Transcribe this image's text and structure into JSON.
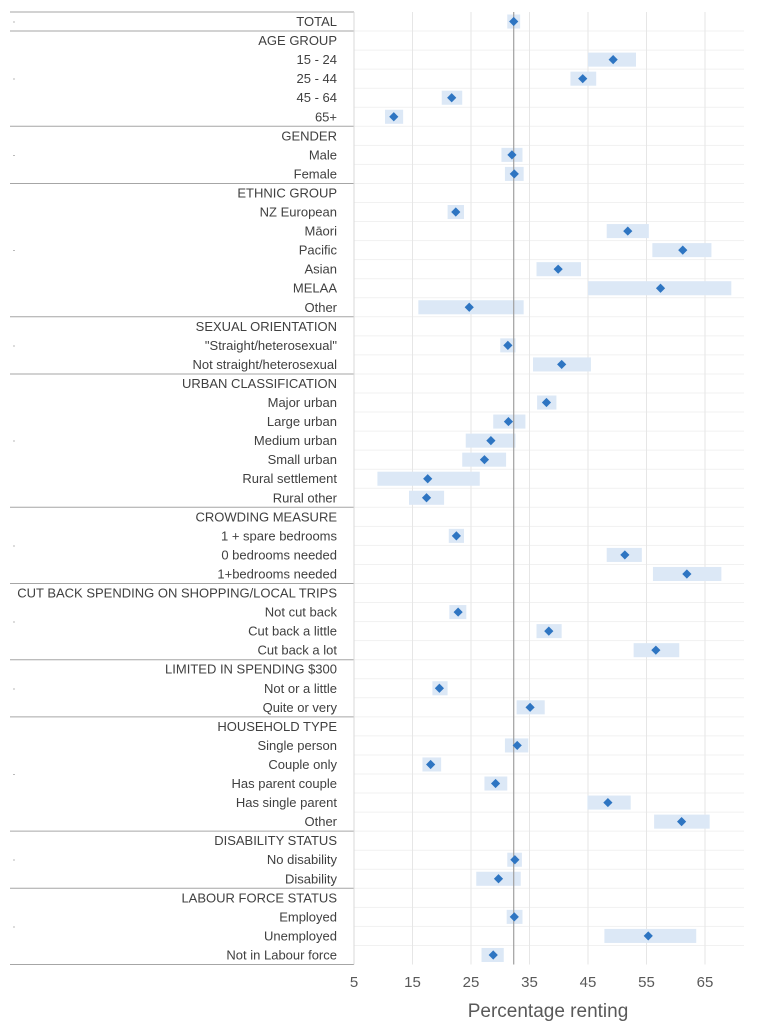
{
  "chart_data": {
    "type": "scatter",
    "title": "",
    "xlabel": "Percentage renting",
    "xlim": [
      5,
      71
    ],
    "xticks": [
      5,
      15,
      25,
      35,
      45,
      55,
      65
    ],
    "reference_line": 32.3,
    "point_color": "#2e75c2",
    "ci_color": "#dce8f6",
    "grid": "vertical",
    "rows": [
      {
        "label": "TOTAL",
        "header": true,
        "value": 32.3,
        "low": 31.2,
        "high": 33.4
      },
      {
        "label": "AGE GROUP",
        "header": true
      },
      {
        "label": "15 - 24",
        "value": 49.3,
        "low": 45.0,
        "high": 53.2
      },
      {
        "label": "25 - 44",
        "value": 44.1,
        "low": 42.0,
        "high": 46.4
      },
      {
        "label": "45 - 64",
        "value": 21.7,
        "low": 20.0,
        "high": 23.5
      },
      {
        "label": "65+",
        "value": 11.8,
        "low": 10.3,
        "high": 13.4
      },
      {
        "label": "GENDER",
        "header": true
      },
      {
        "label": "Male",
        "value": 32.0,
        "low": 30.2,
        "high": 33.8
      },
      {
        "label": "Female",
        "value": 32.4,
        "low": 30.8,
        "high": 34.0
      },
      {
        "label": "ETHNIC GROUP",
        "header": true
      },
      {
        "label": "NZ European",
        "value": 22.4,
        "low": 21.0,
        "high": 23.8
      },
      {
        "label": "Māori",
        "value": 51.8,
        "low": 48.2,
        "high": 55.4
      },
      {
        "label": "Pacific",
        "value": 61.2,
        "low": 56.0,
        "high": 66.1
      },
      {
        "label": "Asian",
        "value": 39.9,
        "low": 36.2,
        "high": 43.8
      },
      {
        "label": "MELAA",
        "value": 57.4,
        "low": 45.0,
        "high": 69.5
      },
      {
        "label": "Other",
        "value": 24.7,
        "low": 16.0,
        "high": 34.0
      },
      {
        "label": "SEXUAL ORIENTATION",
        "header": true
      },
      {
        "label": "\"Straight/heterosexual\"",
        "value": 31.3,
        "low": 30.0,
        "high": 32.6
      },
      {
        "label": "Not straight/heterosexual",
        "value": 40.5,
        "low": 35.6,
        "high": 45.5
      },
      {
        "label": "URBAN CLASSIFICATION",
        "header": true
      },
      {
        "label": "Major urban",
        "value": 37.9,
        "low": 36.3,
        "high": 39.6
      },
      {
        "label": "Large urban",
        "value": 31.4,
        "low": 28.8,
        "high": 34.3
      },
      {
        "label": "Medium urban",
        "value": 28.4,
        "low": 24.1,
        "high": 32.6
      },
      {
        "label": "Small urban",
        "value": 27.3,
        "low": 23.5,
        "high": 31.0
      },
      {
        "label": "Rural settlement",
        "value": 17.6,
        "low": 9.0,
        "high": 26.5
      },
      {
        "label": "Rural other",
        "value": 17.4,
        "low": 14.4,
        "high": 20.4
      },
      {
        "label": "CROWDING MEASURE",
        "header": true
      },
      {
        "label": "1 + spare bedrooms",
        "value": 22.5,
        "low": 21.2,
        "high": 23.8
      },
      {
        "label": "0 bedrooms needed",
        "value": 51.3,
        "low": 48.2,
        "high": 54.2
      },
      {
        "label": "1+bedrooms needed",
        "value": 61.9,
        "low": 56.1,
        "high": 67.8
      },
      {
        "label": "CUT BACK SPENDING ON SHOPPING/LOCAL TRIPS",
        "header": true
      },
      {
        "label": "Not cut back",
        "value": 22.8,
        "low": 21.3,
        "high": 24.2
      },
      {
        "label": "Cut back a little",
        "value": 38.3,
        "low": 36.2,
        "high": 40.5
      },
      {
        "label": "Cut back a lot",
        "value": 56.6,
        "low": 52.8,
        "high": 60.6
      },
      {
        "label": "LIMITED IN SPENDING $300",
        "header": true
      },
      {
        "label": "Not or a little",
        "value": 19.6,
        "low": 18.4,
        "high": 21.0
      },
      {
        "label": "Quite or very",
        "value": 35.1,
        "low": 32.8,
        "high": 37.6
      },
      {
        "label": "HOUSEHOLD TYPE",
        "header": true
      },
      {
        "label": "Single person",
        "value": 32.9,
        "low": 30.8,
        "high": 34.8
      },
      {
        "label": "Couple only",
        "value": 18.1,
        "low": 16.7,
        "high": 19.9
      },
      {
        "label": "Has parent couple",
        "value": 29.2,
        "low": 27.3,
        "high": 31.2
      },
      {
        "label": "Has single parent",
        "value": 48.4,
        "low": 44.9,
        "high": 52.3
      },
      {
        "label": "Other",
        "value": 61.0,
        "low": 56.3,
        "high": 65.8
      },
      {
        "label": "DISABILITY STATUS",
        "header": true
      },
      {
        "label": "No disability",
        "value": 32.5,
        "low": 31.2,
        "high": 33.7
      },
      {
        "label": "Disability",
        "value": 29.7,
        "low": 25.9,
        "high": 33.5
      },
      {
        "label": "LABOUR FORCE STATUS",
        "header": true
      },
      {
        "label": "Employed",
        "value": 32.4,
        "low": 31.1,
        "high": 33.8
      },
      {
        "label": "Unemployed",
        "value": 55.3,
        "low": 47.8,
        "high": 63.5
      },
      {
        "label": "Not in Labour force",
        "value": 28.8,
        "low": 26.8,
        "high": 30.6
      }
    ],
    "groups": [
      {
        "start": 0,
        "end": 0
      },
      {
        "start": 1,
        "end": 5
      },
      {
        "start": 6,
        "end": 8
      },
      {
        "start": 9,
        "end": 15
      },
      {
        "start": 16,
        "end": 18
      },
      {
        "start": 19,
        "end": 25
      },
      {
        "start": 26,
        "end": 29
      },
      {
        "start": 30,
        "end": 33
      },
      {
        "start": 34,
        "end": 36
      },
      {
        "start": 37,
        "end": 42
      },
      {
        "start": 43,
        "end": 45
      },
      {
        "start": 46,
        "end": 49
      }
    ],
    "group_marker": "·"
  }
}
